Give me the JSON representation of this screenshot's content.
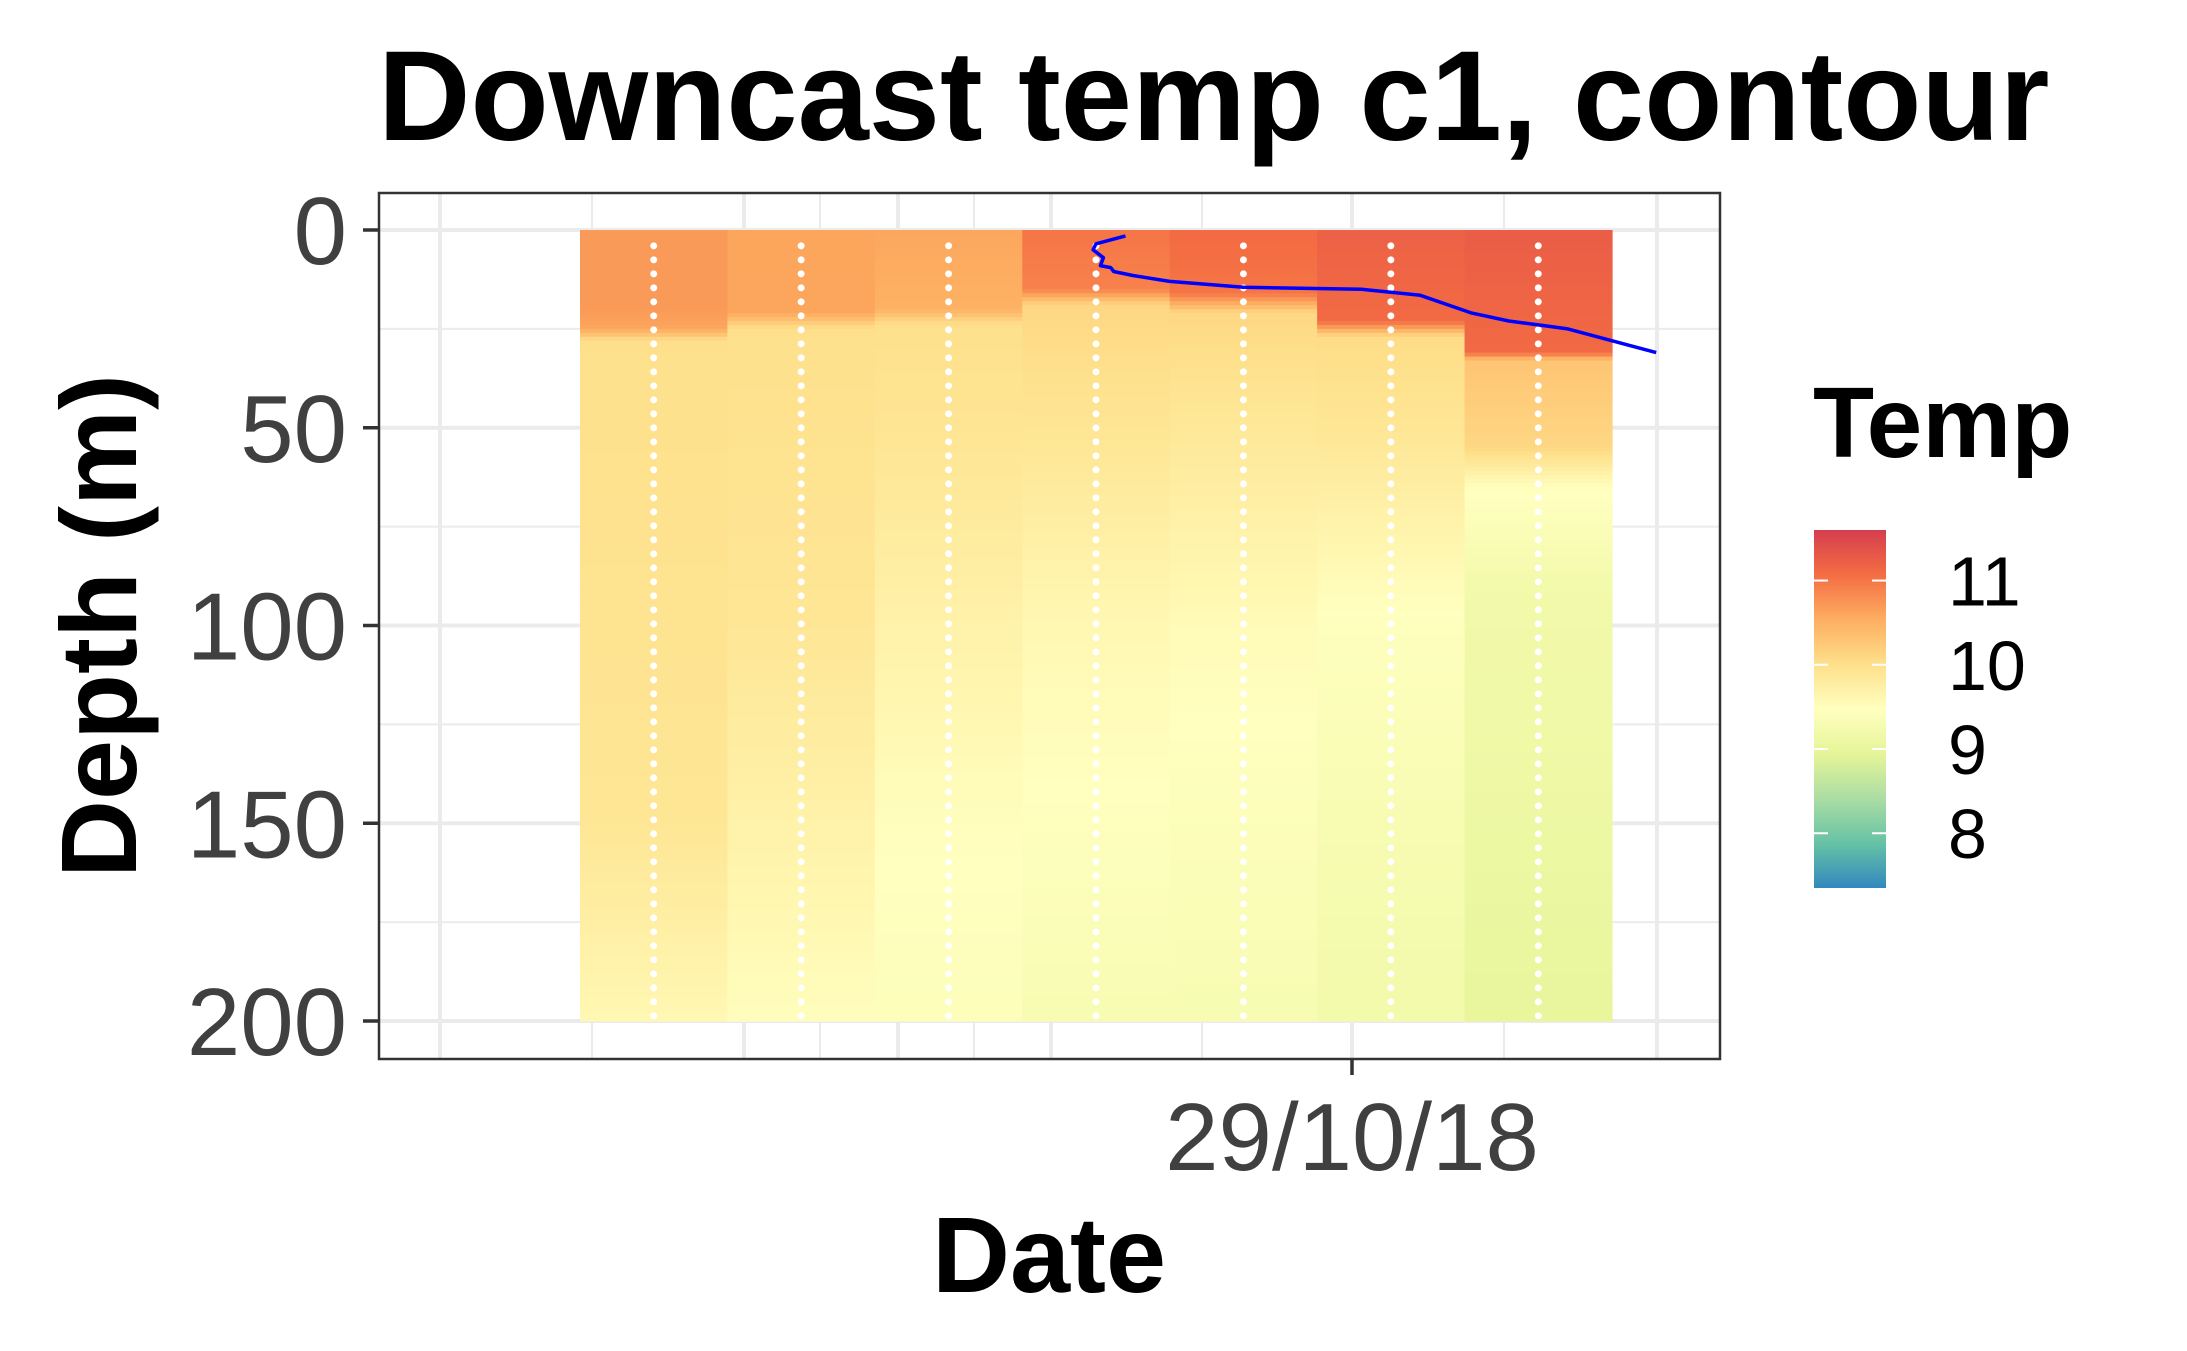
{
  "chart_data": {
    "type": "heatmap",
    "title": "Downcast temp c1, contour",
    "xlabel": "Date",
    "ylabel": "Depth (m)",
    "x_tick_labels": [
      "29/10/18"
    ],
    "y_ticks": [
      0,
      50,
      100,
      150,
      200
    ],
    "ylim": [
      0,
      200
    ],
    "y_reversed": true,
    "grid": true,
    "legend": {
      "title": "Temp",
      "position": "right",
      "ticks": [
        8,
        9,
        10,
        11
      ],
      "range": [
        7.35,
        11.6
      ],
      "palette": [
        "#3288bd",
        "#66c2a5",
        "#abdda4",
        "#e6f598",
        "#ffffbf",
        "#fee08b",
        "#fdae61",
        "#f46d43",
        "#d53e4f"
      ]
    },
    "profiles": [
      {
        "index": 1,
        "values": [
          {
            "depth": 0,
            "temp": 10.7
          },
          {
            "depth": 20,
            "temp": 10.7
          },
          {
            "depth": 25,
            "temp": 10.6
          },
          {
            "depth": 28,
            "temp": 10.0
          },
          {
            "depth": 100,
            "temp": 9.95
          },
          {
            "depth": 150,
            "temp": 9.9
          },
          {
            "depth": 200,
            "temp": 9.6
          }
        ]
      },
      {
        "index": 2,
        "values": [
          {
            "depth": 0,
            "temp": 10.6
          },
          {
            "depth": 21,
            "temp": 10.6
          },
          {
            "depth": 25,
            "temp": 10.0
          },
          {
            "depth": 100,
            "temp": 9.9
          },
          {
            "depth": 150,
            "temp": 9.7
          },
          {
            "depth": 200,
            "temp": 9.5
          }
        ]
      },
      {
        "index": 3,
        "values": [
          {
            "depth": 0,
            "temp": 10.6
          },
          {
            "depth": 20,
            "temp": 10.5
          },
          {
            "depth": 24,
            "temp": 10.0
          },
          {
            "depth": 55,
            "temp": 9.9
          },
          {
            "depth": 100,
            "temp": 9.7
          },
          {
            "depth": 150,
            "temp": 9.5
          },
          {
            "depth": 200,
            "temp": 9.4
          }
        ]
      },
      {
        "index": 4,
        "values": [
          {
            "depth": 0,
            "temp": 11.0
          },
          {
            "depth": 15,
            "temp": 10.9
          },
          {
            "depth": 19,
            "temp": 10.1
          },
          {
            "depth": 60,
            "temp": 9.85
          },
          {
            "depth": 100,
            "temp": 9.6
          },
          {
            "depth": 150,
            "temp": 9.45
          },
          {
            "depth": 200,
            "temp": 9.3
          }
        ]
      },
      {
        "index": 5,
        "values": [
          {
            "depth": 0,
            "temp": 11.1
          },
          {
            "depth": 16,
            "temp": 11.0
          },
          {
            "depth": 21,
            "temp": 10.1
          },
          {
            "depth": 45,
            "temp": 9.9
          },
          {
            "depth": 100,
            "temp": 9.55
          },
          {
            "depth": 150,
            "temp": 9.4
          },
          {
            "depth": 200,
            "temp": 9.3
          }
        ]
      },
      {
        "index": 6,
        "values": [
          {
            "depth": 0,
            "temp": 11.2
          },
          {
            "depth": 23,
            "temp": 11.1
          },
          {
            "depth": 27,
            "temp": 10.05
          },
          {
            "depth": 50,
            "temp": 9.9
          },
          {
            "depth": 100,
            "temp": 9.45
          },
          {
            "depth": 150,
            "temp": 9.3
          },
          {
            "depth": 200,
            "temp": 9.2
          }
        ]
      },
      {
        "index": 7,
        "values": [
          {
            "depth": 0,
            "temp": 11.25
          },
          {
            "depth": 31,
            "temp": 11.1
          },
          {
            "depth": 33,
            "temp": 10.3
          },
          {
            "depth": 55,
            "temp": 10.1
          },
          {
            "depth": 65,
            "temp": 9.5
          },
          {
            "depth": 90,
            "temp": 9.2
          },
          {
            "depth": 150,
            "temp": 9.1
          },
          {
            "depth": 200,
            "temp": 9.0
          }
        ]
      }
    ],
    "thermocline_line": {
      "color": "#0000ff",
      "points": [
        {
          "profile": 4.2,
          "depth": 1.5
        },
        {
          "profile": 4.0,
          "depth": 3.5
        },
        {
          "profile": 3.98,
          "depth": 5
        },
        {
          "profile": 4.05,
          "depth": 7
        },
        {
          "profile": 4.03,
          "depth": 9
        },
        {
          "profile": 4.1,
          "depth": 9.5
        },
        {
          "profile": 4.12,
          "depth": 10.5
        },
        {
          "profile": 4.25,
          "depth": 11.5
        },
        {
          "profile": 4.5,
          "depth": 13
        },
        {
          "profile": 5.0,
          "depth": 14.5
        },
        {
          "profile": 5.8,
          "depth": 15
        },
        {
          "profile": 6.2,
          "depth": 16.5
        },
        {
          "profile": 6.55,
          "depth": 21
        },
        {
          "profile": 6.8,
          "depth": 23
        },
        {
          "profile": 7.0,
          "depth": 24
        },
        {
          "profile": 7.2,
          "depth": 25
        },
        {
          "profile": 7.4,
          "depth": 27
        },
        {
          "profile": 7.6,
          "depth": 29
        },
        {
          "profile": 7.8,
          "depth": 31
        }
      ]
    }
  }
}
